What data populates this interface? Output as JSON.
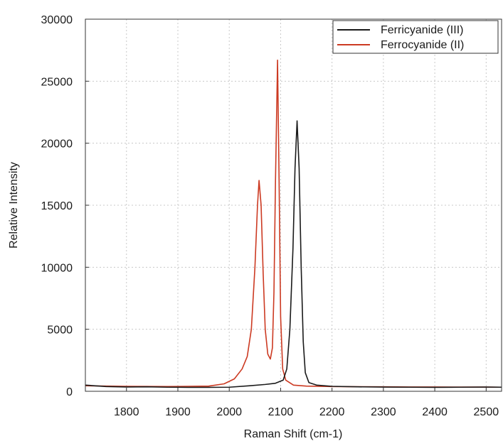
{
  "chart_data": {
    "type": "line",
    "title": "",
    "xlabel": "Raman Shift (cm-1)",
    "ylabel": "Relative Intensity",
    "xlim": [
      1720,
      2530
    ],
    "ylim": [
      0,
      30000
    ],
    "x_ticks": [
      1800,
      1900,
      2000,
      2100,
      2200,
      2300,
      2400,
      2500
    ],
    "y_ticks": [
      0,
      5000,
      10000,
      15000,
      20000,
      25000,
      30000
    ],
    "grid": true,
    "legend_position": "top-right",
    "series": [
      {
        "name": "Ferricyanide (III)",
        "color": "#1a1a1a",
        "points": [
          [
            1720,
            500
          ],
          [
            1760,
            380
          ],
          [
            1800,
            350
          ],
          [
            1840,
            360
          ],
          [
            1880,
            330
          ],
          [
            1920,
            320
          ],
          [
            1960,
            320
          ],
          [
            2000,
            330
          ],
          [
            2040,
            450
          ],
          [
            2070,
            550
          ],
          [
            2090,
            650
          ],
          [
            2105,
            900
          ],
          [
            2112,
            1800
          ],
          [
            2118,
            5000
          ],
          [
            2124,
            11500
          ],
          [
            2128,
            18000
          ],
          [
            2132,
            21800
          ],
          [
            2136,
            18000
          ],
          [
            2140,
            10000
          ],
          [
            2144,
            4000
          ],
          [
            2148,
            1500
          ],
          [
            2155,
            700
          ],
          [
            2170,
            500
          ],
          [
            2200,
            400
          ],
          [
            2250,
            360
          ],
          [
            2300,
            340
          ],
          [
            2350,
            330
          ],
          [
            2400,
            320
          ],
          [
            2450,
            330
          ],
          [
            2500,
            340
          ],
          [
            2530,
            330
          ]
        ]
      },
      {
        "name": "Ferrocyanide (II)",
        "color": "#cc3a22",
        "points": [
          [
            1720,
            450
          ],
          [
            1760,
            420
          ],
          [
            1800,
            400
          ],
          [
            1840,
            390
          ],
          [
            1880,
            380
          ],
          [
            1920,
            400
          ],
          [
            1960,
            420
          ],
          [
            1990,
            600
          ],
          [
            2010,
            1000
          ],
          [
            2025,
            1800
          ],
          [
            2035,
            2800
          ],
          [
            2043,
            5000
          ],
          [
            2050,
            10000
          ],
          [
            2055,
            15000
          ],
          [
            2058,
            17000
          ],
          [
            2062,
            15000
          ],
          [
            2066,
            9500
          ],
          [
            2070,
            5000
          ],
          [
            2075,
            3000
          ],
          [
            2080,
            2600
          ],
          [
            2084,
            3500
          ],
          [
            2087,
            8000
          ],
          [
            2090,
            17000
          ],
          [
            2094,
            26700
          ],
          [
            2097,
            17000
          ],
          [
            2100,
            6000
          ],
          [
            2104,
            1800
          ],
          [
            2110,
            900
          ],
          [
            2125,
            500
          ],
          [
            2150,
            420
          ],
          [
            2200,
            380
          ],
          [
            2250,
            370
          ],
          [
            2300,
            360
          ],
          [
            2350,
            350
          ],
          [
            2400,
            350
          ],
          [
            2450,
            340
          ],
          [
            2500,
            340
          ],
          [
            2530,
            330
          ]
        ]
      }
    ]
  }
}
